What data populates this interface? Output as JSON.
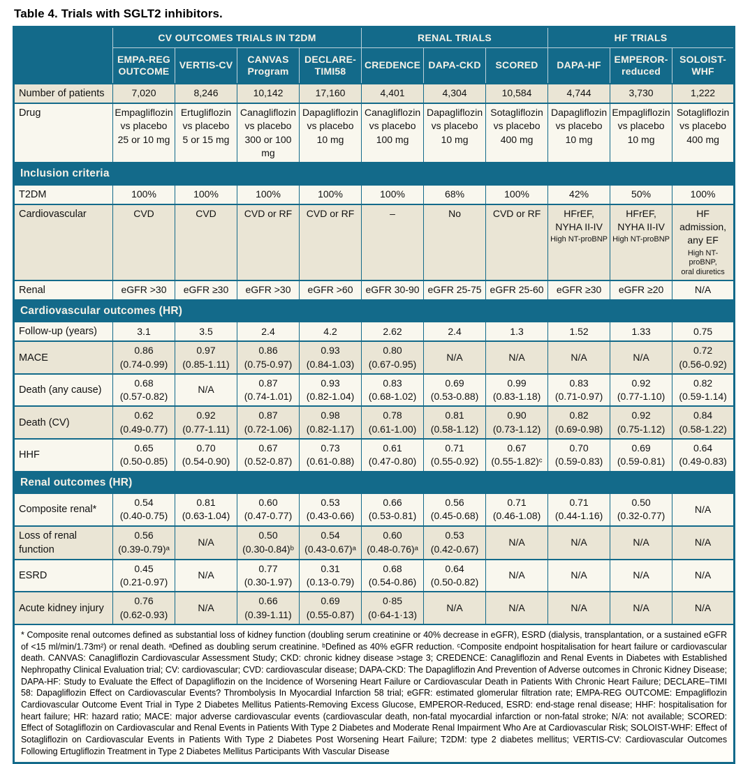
{
  "title": "Table 4. Trials with SGLT2 inhibitors.",
  "colors": {
    "teal_header": "#136a8a",
    "row_beige": "#eae5d5",
    "row_cream": "#f9f7ee",
    "header_text": "#f6f2e7",
    "body_text": "#111111"
  },
  "header": {
    "groups": [
      {
        "label": "CV OUTCOMES TRIALS IN T2DM",
        "span": 4
      },
      {
        "label": "RENAL TRIALS",
        "span": 3
      },
      {
        "label": "HF TRIALS",
        "span": 3
      }
    ],
    "trials": [
      "EMPA-REG\nOUTCOME",
      "VERTIS-CV",
      "CANVAS\nProgram",
      "DECLARE-\nTIMI58",
      "CREDENCE",
      "DAPA-CKD",
      "SCORED",
      "DAPA-HF",
      "EMPEROR-\nreduced",
      "SOLOIST-\nWHF"
    ]
  },
  "sections": [
    {
      "header": null,
      "rows": [
        {
          "label": "Number of patients",
          "shade": "dark",
          "cells": [
            "7,020",
            "8,246",
            "10,142",
            "17,160",
            "4,401",
            "4,304",
            "10,584",
            "4,744",
            "3,730",
            "1,222"
          ]
        },
        {
          "label": "Drug",
          "shade": "light",
          "valign": "top",
          "cells": [
            "Empagliflozin\nvs placebo\n25 or 10 mg",
            "Ertugliflozin\nvs placebo\n5 or 15 mg",
            "Canagliflozin\nvs placebo\n300 or 100 mg",
            "Dapagliflozin\nvs placebo\n10 mg",
            "Canagliflozin\nvs placebo\n100 mg",
            "Dapagliflozin\nvs placebo\n10 mg",
            "Sotagliflozin\nvs placebo\n400 mg",
            "Dapagliflozin\nvs placebo\n10 mg",
            "Empagliflozin\nvs placebo\n10 mg",
            "Sotagliflozin\nvs placebo\n400 mg"
          ]
        }
      ]
    },
    {
      "header": "Inclusion criteria",
      "rows": [
        {
          "label": "T2DM",
          "shade": "light",
          "cells": [
            "100%",
            "100%",
            "100%",
            "100%",
            "100%",
            "68%",
            "100%",
            "42%",
            "50%",
            "100%"
          ]
        },
        {
          "label": "Cardiovascular",
          "shade": "dark",
          "valign": "top",
          "size": "tall",
          "cells": [
            "CVD",
            "CVD",
            "CVD or RF",
            "CVD or RF",
            "–",
            "No",
            "CVD or RF",
            {
              "main": "HFrEF,\nNYHA II-IV",
              "sub": "High NT-proBNP"
            },
            {
              "main": "HFrEF,\nNYHA II-IV",
              "sub": "High NT-proBNP"
            },
            {
              "main": "HF admission,\nany EF",
              "sub": "High NT-proBNP,\noral diuretics"
            }
          ]
        },
        {
          "label": "Renal",
          "shade": "light",
          "cells": [
            "eGFR >30",
            "eGFR ≥30",
            "eGFR >30",
            "eGFR >60",
            "eGFR 30-90",
            "eGFR 25-75",
            "eGFR 25-60",
            "eGFR ≥30",
            "eGFR ≥20",
            "N/A"
          ]
        }
      ]
    },
    {
      "header": "Cardiovascular outcomes (HR)",
      "rows": [
        {
          "label": "Follow-up (years)",
          "shade": "light",
          "cells": [
            "3.1",
            "3.5",
            "2.4",
            "4.2",
            "2.62",
            "2.4",
            "1.3",
            "1.52",
            "1.33",
            "0.75"
          ]
        },
        {
          "label": "MACE",
          "shade": "dark",
          "cells": [
            "0.86\n(0.74-0.99)",
            "0.97\n(0.85-1.11)",
            "0.86\n(0.75-0.97)",
            "0.93\n(0.84-1.03)",
            "0.80\n(0.67-0.95)",
            "N/A",
            "N/A",
            "N/A",
            "N/A",
            "0.72\n(0.56-0.92)"
          ]
        },
        {
          "label": "Death (any cause)",
          "shade": "light",
          "cells": [
            "0.68\n(0.57-0.82)",
            "N/A",
            "0.87\n(0.74-1.01)",
            "0.93\n(0.82-1.04)",
            "0.83\n(0.68-1.02)",
            "0.69\n(0.53-0.88)",
            "0.99\n(0.83-1.18)",
            "0.83\n(0.71-0.97)",
            "0.92\n(0.77-1.10)",
            "0.82\n(0.59-1.14)"
          ]
        },
        {
          "label": "Death (CV)",
          "shade": "dark",
          "cells": [
            "0.62\n(0.49-0.77)",
            "0.92\n(0.77-1.11)",
            "0.87\n(0.72-1.06)",
            "0.98\n(0.82-1.17)",
            "0.78\n(0.61-1.00)",
            "0.81\n(0.58-1.12)",
            "0.90\n(0.73-1.12)",
            "0.82\n(0.69-0.98)",
            "0.92\n(0.75-1.12)",
            "0.84\n(0.58-1.22)"
          ]
        },
        {
          "label": "HHF",
          "shade": "light",
          "cells": [
            "0.65\n(0.50-0.85)",
            "0.70\n(0.54-0.90)",
            "0.67\n(0.52-0.87)",
            "0.73\n(0.61-0.88)",
            "0.61\n(0.47-0.80)",
            "0.71\n(0.55-0.92)",
            "0.67\n(0.55-1.82)ᶜ",
            "0.70\n(0.59-0.83)",
            "0.69\n(0.59-0.81)",
            "0.64\n(0.49-0.83)"
          ]
        }
      ]
    },
    {
      "header": "Renal outcomes (HR)",
      "rows": [
        {
          "label": "Composite renal*",
          "shade": "light",
          "cells": [
            "0.54\n(0.40-0.75)",
            "0.81\n(0.63-1.04)",
            "0.60\n(0.47-0.77)",
            "0.53\n(0.43-0.66)",
            "0.66\n(0.53-0.81)",
            "0.56\n(0.45-0.68)",
            "0.71\n(0.46-1.08)",
            "0.71\n(0.44-1.16)",
            "0.50\n(0.32-0.77)",
            "N/A"
          ]
        },
        {
          "label": "Loss of renal function",
          "shade": "dark",
          "cells": [
            "0.56\n(0.39-0.79)ᵃ",
            "N/A",
            "0.50\n(0.30-0.84)ᵇ",
            "0.54\n(0.43-0.67)ᵃ",
            "0.60\n(0.48-0.76)ᵃ",
            "0.53\n(0.42-0.67)",
            "N/A",
            "N/A",
            "N/A",
            "N/A"
          ]
        },
        {
          "label": "ESRD",
          "shade": "light",
          "cells": [
            "0.45\n(0.21-0.97)",
            "N/A",
            "0.77\n(0.30-1.97)",
            "0.31\n(0.13-0.79)",
            "0.68\n(0.54-0.86)",
            "0.64\n(0.50-0.82)",
            "N/A",
            "N/A",
            "N/A",
            "N/A"
          ]
        },
        {
          "label": "Acute kidney injury",
          "shade": "dark",
          "cells": [
            "0.76\n(0.62-0.93)",
            "N/A",
            "0.66\n(0.39-1.11)",
            "0.69\n(0.55-0.87)",
            "0·85\n(0·64-1·13)",
            "N/A",
            "N/A",
            "N/A",
            "N/A",
            "N/A"
          ]
        }
      ]
    }
  ],
  "footnote": "* Composite renal outcomes defined as substantial loss of kidney function (doubling serum creatinine or 40% decrease in eGFR), ESRD (dialysis, transplantation, or a sustained eGFR of <15 ml/min/1.73m²) or renal death. ᵃDefined as doubling serum creatinine. ᵇDefined as 40% eGFR reduction. ᶜComposite endpoint hospitalisation for heart failure or cardiovascular death. CANVAS: Canagliflozin Cardiovascular Assessment Study; CKD: chronic kidney disease >stage 3; CREDENCE: Canagliflozin and Renal Events in Diabetes with Established Nephropathy Clinical Evaluation trial; CV: cardiovascular; CVD: cardiovascular disease; DAPA-CKD: The Dapagliflozin And Prevention of Adverse outcomes in Chronic Kidney Disease; DAPA-HF: Study to Evaluate the Effect of Dapagliflozin on the Incidence of Worsening Heart Failure or Cardiovascular Death in Patients With Chronic Heart Failure; DECLARE–TIMI 58: Dapagliflozin Effect on Cardiovascular Events? Thrombolysis In Myocardial Infarction 58 trial; eGFR: estimated glomerular filtration rate; EMPA-REG OUTCOME: Empagliflozin Cardiovascular Outcome Event Trial in Type 2 Diabetes Mellitus Patients-Removing Excess Glucose, EMPEROR-Reduced, ESRD: end-stage renal disease; HHF: hospitalisation for heart failure; HR: hazard ratio; MACE: major adverse cardiovascular events (cardiovascular death, non-fatal myocardial infarction or non-fatal stroke; N/A: not available; SCORED: Effect of Sotagliflozin on Cardiovascular and Renal Events in Patients With Type 2 Diabetes and Moderate Renal Impairment Who Are at Cardiovascular Risk; SOLOIST-WHF: Effect of Sotagliflozin on Cardiovascular Events in Patients With Type 2 Diabetes Post Worsening Heart Failure; T2DM: type 2 diabetes mellitus; VERTIS-CV: Cardiovascular Outcomes Following Ertugliflozin Treatment in Type 2 Diabetes Mellitus Participants With Vascular Disease"
}
